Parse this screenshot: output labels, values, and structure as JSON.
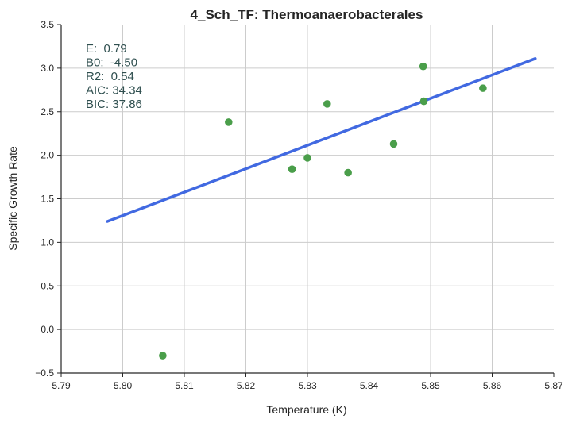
{
  "chart_data": {
    "type": "scatter",
    "title": "4_Sch_TF: Thermoanaerobacterales",
    "xlabel": "Temperature (K)",
    "ylabel": "Specific Growth Rate",
    "xlim": [
      5.79,
      5.87
    ],
    "ylim": [
      -0.5,
      3.5
    ],
    "x_ticks": [
      5.79,
      5.8,
      5.81,
      5.82,
      5.83,
      5.84,
      5.85,
      5.86,
      5.87
    ],
    "y_ticks": [
      -0.5,
      0.0,
      0.5,
      1.0,
      1.5,
      2.0,
      2.5,
      3.0,
      3.5
    ],
    "x_tick_labels": [
      "5.79",
      "5.80",
      "5.81",
      "5.82",
      "5.83",
      "5.84",
      "5.85",
      "5.86",
      "5.87"
    ],
    "y_tick_labels": [
      "−0.5",
      "0.0",
      "0.5",
      "1.0",
      "1.5",
      "2.0",
      "2.5",
      "3.0",
      "3.5"
    ],
    "grid": true,
    "points": {
      "color": "#4a9e4a",
      "x": [
        5.8065,
        5.8172,
        5.8275,
        5.83,
        5.8332,
        5.8366,
        5.844,
        5.8488,
        5.8489,
        5.8585
      ],
      "y": [
        -0.3,
        2.38,
        1.84,
        1.97,
        2.59,
        1.8,
        2.13,
        3.02,
        2.62,
        2.77
      ]
    },
    "fit_line": {
      "color": "#4169e1",
      "x": [
        5.7975,
        5.867
      ],
      "y": [
        1.24,
        3.11
      ]
    },
    "annotations": [
      {
        "text": "E:  0.79"
      },
      {
        "text": "B0:  -4.50"
      },
      {
        "text": "R2:  0.54"
      },
      {
        "text": "AIC: 34.34"
      },
      {
        "text": "BIC: 37.86"
      }
    ]
  }
}
